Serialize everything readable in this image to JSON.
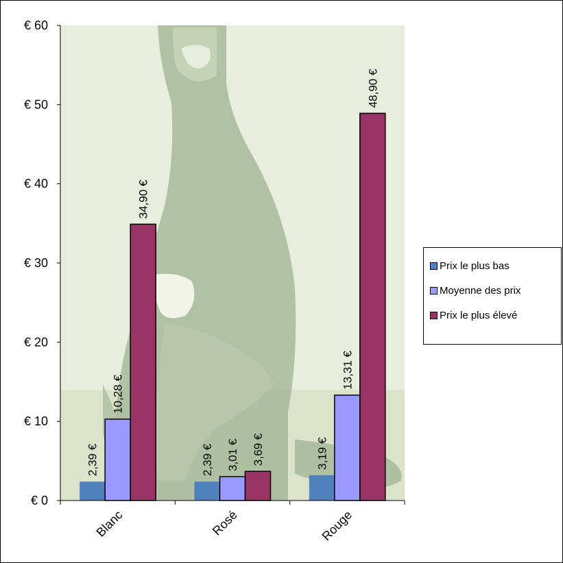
{
  "chart_data": {
    "type": "bar",
    "categories": [
      "Blanc",
      "Rosé",
      "Rouge"
    ],
    "series": [
      {
        "name": "Prix le plus bas",
        "color": "#4f81bd",
        "values": [
          2.39,
          2.39,
          3.19
        ],
        "labels": [
          "2,39 €",
          "2,39 €",
          "3,19 €"
        ]
      },
      {
        "name": "Moyenne des prix",
        "color": "#9999ff",
        "values": [
          10.28,
          3.01,
          13.31
        ],
        "labels": [
          "10,28 €",
          "3,01 €",
          "13,31 €"
        ]
      },
      {
        "name": "Prix le plus élevé",
        "color": "#993366",
        "values": [
          34.9,
          3.69,
          48.9
        ],
        "labels": [
          "34,90 €",
          "3,69 €",
          "48,90 €"
        ]
      }
    ],
    "y_ticks": [
      {
        "value": 0,
        "label": "€ 0"
      },
      {
        "value": 10,
        "label": "€ 10"
      },
      {
        "value": 20,
        "label": "€ 20"
      },
      {
        "value": 30,
        "label": "€ 30"
      },
      {
        "value": 40,
        "label": "€ 40"
      },
      {
        "value": 50,
        "label": "€ 50"
      },
      {
        "value": 60,
        "label": "€ 60"
      }
    ],
    "ylim": [
      0,
      60
    ],
    "grid": false,
    "legend_position": "right",
    "plot_background": "wine-bottle-picture"
  }
}
